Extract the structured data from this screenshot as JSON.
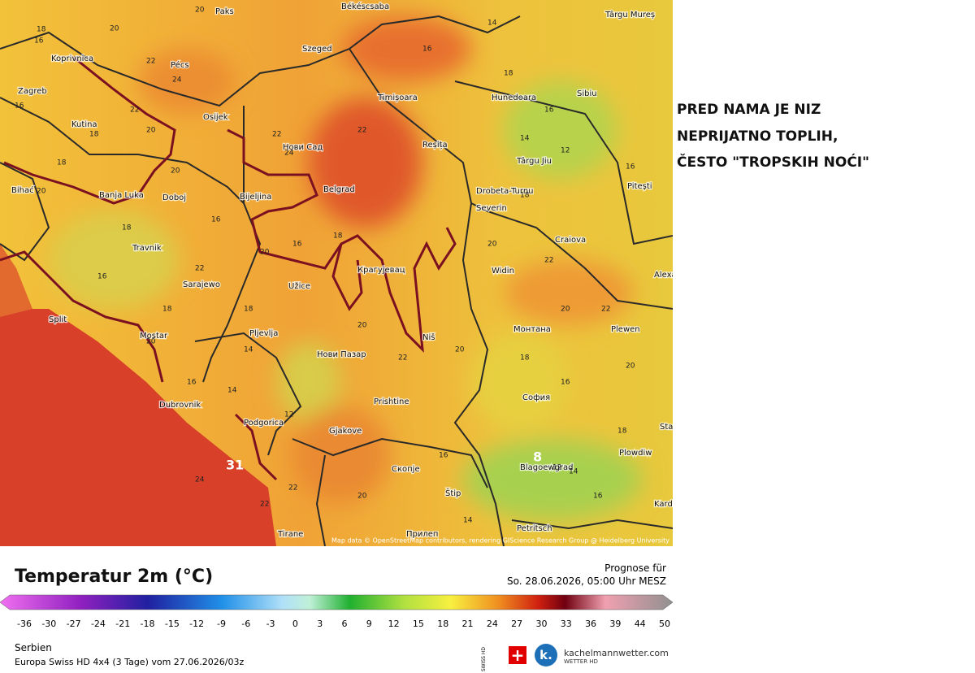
{
  "map": {
    "annotation": [
      "PRED NAMA JE NIZ",
      "NEPRIJATNO TOPLIH,",
      "ČESTO \"TROPSKIH NOĆI\""
    ],
    "cities": [
      "Békéscsaba",
      "Paks",
      "Szeged",
      "Koprivnica",
      "Pécs",
      "Zagreb",
      "Timișoara",
      "Hunedoara",
      "Sibiu",
      "Târgu Mureș",
      "Osijek",
      "Kutina",
      "Нови Сад",
      "Reșița",
      "Târgu Jiu",
      "Banja Luka",
      "Doboj",
      "Bijeljina",
      "Belgrad",
      "Drobeta-Turnu",
      "Severin",
      "Pitești",
      "Craiova",
      "Travnik",
      "Крагујевац",
      "Sarajewo",
      "Užice",
      "Widin",
      "Alexandria",
      "Split",
      "Mostar",
      "Pljevlja",
      "Niš",
      "Монтана",
      "Plewen",
      "Нови Пазар",
      "Dubrovnik",
      "Prishtine",
      "София",
      "Podgorica",
      "Gjakove",
      "Blagoewgrad",
      "Plowdiw",
      "Скопје",
      "Štip",
      "Tirane",
      "Прилеп",
      "Petritsch",
      "Stara",
      "Kardsc",
      "Bihać"
    ],
    "temperatures": [
      20,
      18,
      16,
      20,
      22,
      24,
      22,
      20,
      18,
      16,
      18,
      20,
      22,
      24,
      22,
      16,
      14,
      18,
      14,
      16,
      12,
      16,
      18,
      20,
      22,
      20,
      22,
      20,
      16,
      18,
      20,
      22,
      20,
      18,
      16,
      20,
      22,
      18,
      20,
      16,
      14,
      18,
      16,
      20,
      18,
      16,
      14,
      12,
      14,
      16,
      22,
      20,
      24,
      22,
      31,
      8,
      14,
      12,
      16,
      18
    ],
    "attribution": "Map data © OpenStreetMap contributors, rendering GIScience Research Group @ Heidelberg University"
  },
  "legend": {
    "title": "Temperatur 2m (°C)",
    "ticks": [
      -36,
      -30,
      -27,
      -24,
      -21,
      -18,
      -15,
      -12,
      -9,
      -6,
      -3,
      0,
      3,
      6,
      9,
      12,
      15,
      18,
      21,
      24,
      27,
      30,
      33,
      36,
      39,
      44,
      50
    ]
  },
  "forecast": {
    "label": "Prognose für",
    "time": "So. 28.06.2026, 05:00 Uhr MESZ"
  },
  "footer": {
    "region": "Serbien",
    "model": "Europa Swiss HD 4x4 (3 Tage) vom 27.06.2026/03z",
    "swiss": "SWISS HD",
    "brand": "kachelmannwetter.com",
    "brand_sub": "WETTER HD"
  }
}
